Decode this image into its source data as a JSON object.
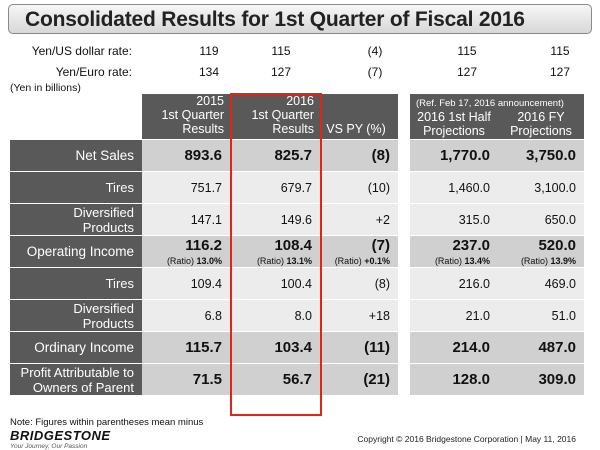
{
  "title": "Consolidated Results for 1st Quarter of Fiscal 2016",
  "rates": [
    {
      "label": "Yen/US dollar rate:",
      "values": [
        "119",
        "115",
        "(4)",
        "115",
        "115"
      ]
    },
    {
      "label": "Yen/Euro rate:",
      "values": [
        "134",
        "127",
        "(7)",
        "127",
        "127"
      ]
    }
  ],
  "unit_note": "(Yen in billions)",
  "headers": {
    "col2015": [
      "2015",
      "1st Quarter",
      "Results"
    ],
    "col2016": [
      "2016",
      "1st Quarter",
      "Results"
    ],
    "vs": "VS PY (%)",
    "ref": "(Ref.  Feb 17, 2016 announcement)",
    "half": [
      "2016 1st Half",
      "Projections"
    ],
    "fy": [
      "2016  FY",
      "Projections"
    ]
  },
  "rows": [
    {
      "label": "Net Sales",
      "type": "main",
      "v2015": "893.6",
      "v2016": "825.7",
      "vs": "(8)",
      "half": "1,770.0",
      "fy": "3,750.0"
    },
    {
      "label": "Tires",
      "type": "sub",
      "v2015": "751.7",
      "v2016": "679.7",
      "vs": "(10)",
      "half": "1,460.0",
      "fy": "3,100.0"
    },
    {
      "label": "Diversified Products",
      "type": "sub2",
      "v2015": "147.1",
      "v2016": "149.6",
      "vs": "+2",
      "half": "315.0",
      "fy": "650.0"
    },
    {
      "label": "Operating Income",
      "type": "ratio",
      "v2015": "116.2",
      "r2015_label": "(Ratio)",
      "r2015": "13.0%",
      "v2016": "108.4",
      "r2016_label": "(Ratio)",
      "r2016": "13.1%",
      "vs": "(7)",
      "rvs_label": "(Ratio)",
      "rvs": "+0.1%",
      "half": "237.0",
      "rhalf_label": "(Ratio)",
      "rhalf": "13.4%",
      "fy": "520.0",
      "rfy_label": "(Ratio)",
      "rfy": "13.9%"
    },
    {
      "label": "Tires",
      "type": "sub",
      "v2015": "109.4",
      "v2016": "100.4",
      "vs": "(8)",
      "half": "216.0",
      "fy": "469.0"
    },
    {
      "label": "Diversified Products",
      "type": "sub2",
      "v2015": "6.8",
      "v2016": "8.0",
      "vs": "+18",
      "half": "21.0",
      "fy": "51.0"
    },
    {
      "label": "Ordinary Income",
      "type": "main",
      "v2015": "115.7",
      "v2016": "103.4",
      "vs": "(11)",
      "half": "214.0",
      "fy": "487.0"
    },
    {
      "label": "Profit Attributable to Owners of Parent",
      "type": "main2",
      "v2015": "71.5",
      "v2016": "56.7",
      "vs": "(21)",
      "half": "128.0",
      "fy": "309.0"
    }
  ],
  "note": "Note: Figures within parentheses mean minus",
  "logo": {
    "brand": "BRIDGESTONE",
    "tagline": "Your Journey, Our Passion"
  },
  "copyright": "Copyright © 2016 Bridgestone Corporation  |  May 11, 2016",
  "colors": {
    "dark_cell": "#595959",
    "main_cell": "#d0d0d0",
    "sub_cell": "#ececec",
    "highlight": "#e2231a"
  }
}
